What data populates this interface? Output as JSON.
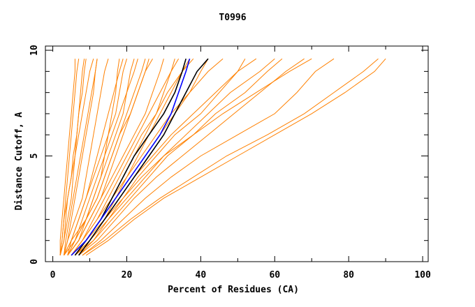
{
  "chart_data": {
    "type": "line",
    "title": "T0996",
    "xlabel": "Percent of Residues (CA)",
    "ylabel": "Distance Cutoff, A",
    "xlim": [
      -2,
      101.5
    ],
    "ylim": [
      0,
      10.2
    ],
    "xticks": [
      0,
      20,
      40,
      60,
      80,
      100
    ],
    "xtick_labels": [
      "0",
      "20",
      "40",
      "60",
      "80",
      "100"
    ],
    "yticks": [
      0,
      5,
      10
    ],
    "ytick_labels": [
      "0",
      "5",
      "10"
    ],
    "grid": false,
    "colors": {
      "others": "#ff8000",
      "highlight_black": "#000000",
      "highlight_blue": "#0000ff"
    },
    "y_levels": [
      0.3,
      1,
      2,
      3,
      4,
      5,
      6,
      7,
      8,
      9,
      9.6
    ],
    "series": [
      {
        "color": "#ff8000",
        "x": [
          2,
          2.5,
          3,
          3.5,
          4,
          4.5,
          5,
          5.5,
          6,
          6.5,
          7
        ]
      },
      {
        "color": "#ff8000",
        "x": [
          2,
          3,
          3.5,
          4,
          5,
          5.5,
          6.5,
          7,
          8,
          8.5,
          9
        ]
      },
      {
        "color": "#ff8000",
        "x": [
          2,
          2.5,
          3,
          4,
          5,
          6,
          7,
          8,
          9,
          10,
          11
        ]
      },
      {
        "color": "#ff8000",
        "x": [
          3,
          3.5,
          4.5,
          5.5,
          6.5,
          7.5,
          8.5,
          9.5,
          10.5,
          11.5,
          12
        ]
      },
      {
        "color": "#ff8000",
        "x": [
          2,
          3,
          4,
          5,
          5.5,
          6,
          6.5,
          7,
          7.5,
          8,
          8.5
        ]
      },
      {
        "color": "#ff8000",
        "x": [
          3,
          4,
          6,
          8,
          9,
          10,
          11,
          12,
          13,
          14,
          15
        ]
      },
      {
        "color": "#ff8000",
        "x": [
          3,
          5,
          7,
          9,
          10.5,
          12,
          13.5,
          15,
          16.5,
          18,
          19
        ]
      },
      {
        "color": "#ff8000",
        "x": [
          4,
          6,
          8,
          10,
          12,
          14,
          16,
          18,
          20,
          22,
          23
        ]
      },
      {
        "color": "#ff8000",
        "x": [
          4,
          7,
          9,
          12,
          14,
          16,
          18,
          21,
          23,
          25,
          26
        ]
      },
      {
        "color": "#ff8000",
        "x": [
          4,
          7,
          10,
          13,
          16,
          19,
          22,
          25,
          27,
          29,
          30
        ]
      },
      {
        "color": "#ff8000",
        "x": [
          5,
          8,
          11,
          14,
          17,
          20,
          23,
          26,
          29,
          32,
          34
        ]
      },
      {
        "color": "#ff8000",
        "x": [
          5,
          8,
          12,
          15,
          18,
          21,
          24,
          28,
          31,
          35,
          38
        ]
      },
      {
        "color": "#ff8000",
        "x": [
          6,
          9,
          13,
          16,
          20,
          24,
          28,
          32,
          37,
          42,
          46
        ]
      },
      {
        "color": "#ff8000",
        "x": [
          6,
          10,
          14,
          18,
          22,
          27,
          32,
          38,
          44,
          50,
          55
        ]
      },
      {
        "color": "#ff8000",
        "x": [
          6,
          11,
          15,
          20,
          25,
          30,
          36,
          42,
          48,
          56,
          60
        ]
      },
      {
        "color": "#ff8000",
        "x": [
          7,
          12,
          17,
          22,
          28,
          35,
          42,
          49,
          56,
          63,
          68
        ]
      },
      {
        "color": "#ff8000",
        "x": [
          8,
          13,
          19,
          25,
          32,
          40,
          50,
          60,
          66,
          71,
          76
        ]
      },
      {
        "color": "#ff8000",
        "x": [
          8,
          14,
          21,
          29,
          38,
          47,
          58,
          68,
          76,
          84,
          88
        ]
      },
      {
        "color": "#ff8000",
        "x": [
          9,
          15,
          22,
          30,
          40,
          50,
          60,
          70,
          79,
          87,
          90
        ]
      },
      {
        "color": "#ff8000",
        "x": [
          3,
          5,
          9,
          11,
          13,
          15,
          17,
          19,
          20,
          21,
          22
        ]
      },
      {
        "color": "#ff8000",
        "x": [
          4,
          6,
          9,
          11,
          13,
          14,
          15,
          16,
          17,
          17.5,
          18
        ]
      },
      {
        "color": "#ff8000",
        "x": [
          5,
          9,
          14,
          17,
          20,
          23,
          26,
          29,
          32,
          35,
          37
        ]
      },
      {
        "color": "#ff8000",
        "x": [
          5,
          8,
          12,
          16,
          19,
          22,
          25,
          28,
          30,
          32,
          33
        ]
      },
      {
        "color": "#ff8000",
        "x": [
          6,
          10,
          15,
          19,
          23,
          28,
          33,
          40,
          45,
          50,
          52
        ]
      },
      {
        "color": "#ff8000",
        "x": [
          7,
          11,
          16,
          21,
          26,
          31,
          38,
          44,
          52,
          58,
          62
        ]
      },
      {
        "color": "#ff8000",
        "x": [
          4,
          7,
          10,
          13,
          15,
          17,
          19,
          21,
          23,
          25,
          27
        ]
      },
      {
        "color": "#ff8000",
        "x": [
          3,
          6,
          9,
          12,
          14,
          16,
          18,
          20,
          22,
          24,
          25
        ]
      },
      {
        "color": "#ff8000",
        "x": [
          4,
          5,
          7,
          9,
          11,
          13,
          15,
          17,
          18,
          19,
          20
        ]
      },
      {
        "color": "#ff8000",
        "x": [
          6,
          10,
          14,
          19,
          24,
          30,
          38,
          46,
          55,
          64,
          70
        ]
      },
      {
        "color": "#ff8000",
        "x": [
          5,
          9,
          13,
          17,
          21,
          25,
          29,
          33,
          37,
          40,
          42
        ]
      },
      {
        "color": "#ff8000",
        "x": [
          2,
          2,
          2.5,
          3,
          3.5,
          4,
          4.5,
          5,
          5.5,
          6,
          6
        ]
      },
      {
        "color": "#ff8000",
        "x": [
          3,
          4,
          5,
          6,
          7,
          8,
          9,
          10,
          11,
          11.5,
          12
        ]
      },
      {
        "color": "#000000",
        "x": [
          6,
          9,
          13,
          16,
          19,
          22,
          26,
          30,
          33,
          35,
          36
        ]
      },
      {
        "color": "#000000",
        "x": [
          7,
          10,
          14,
          18,
          22,
          26,
          30,
          33,
          36,
          39,
          42
        ]
      },
      {
        "color": "#0000ff",
        "x": [
          5,
          9,
          13,
          17,
          21,
          25,
          29,
          32,
          34,
          36,
          37
        ]
      }
    ]
  }
}
